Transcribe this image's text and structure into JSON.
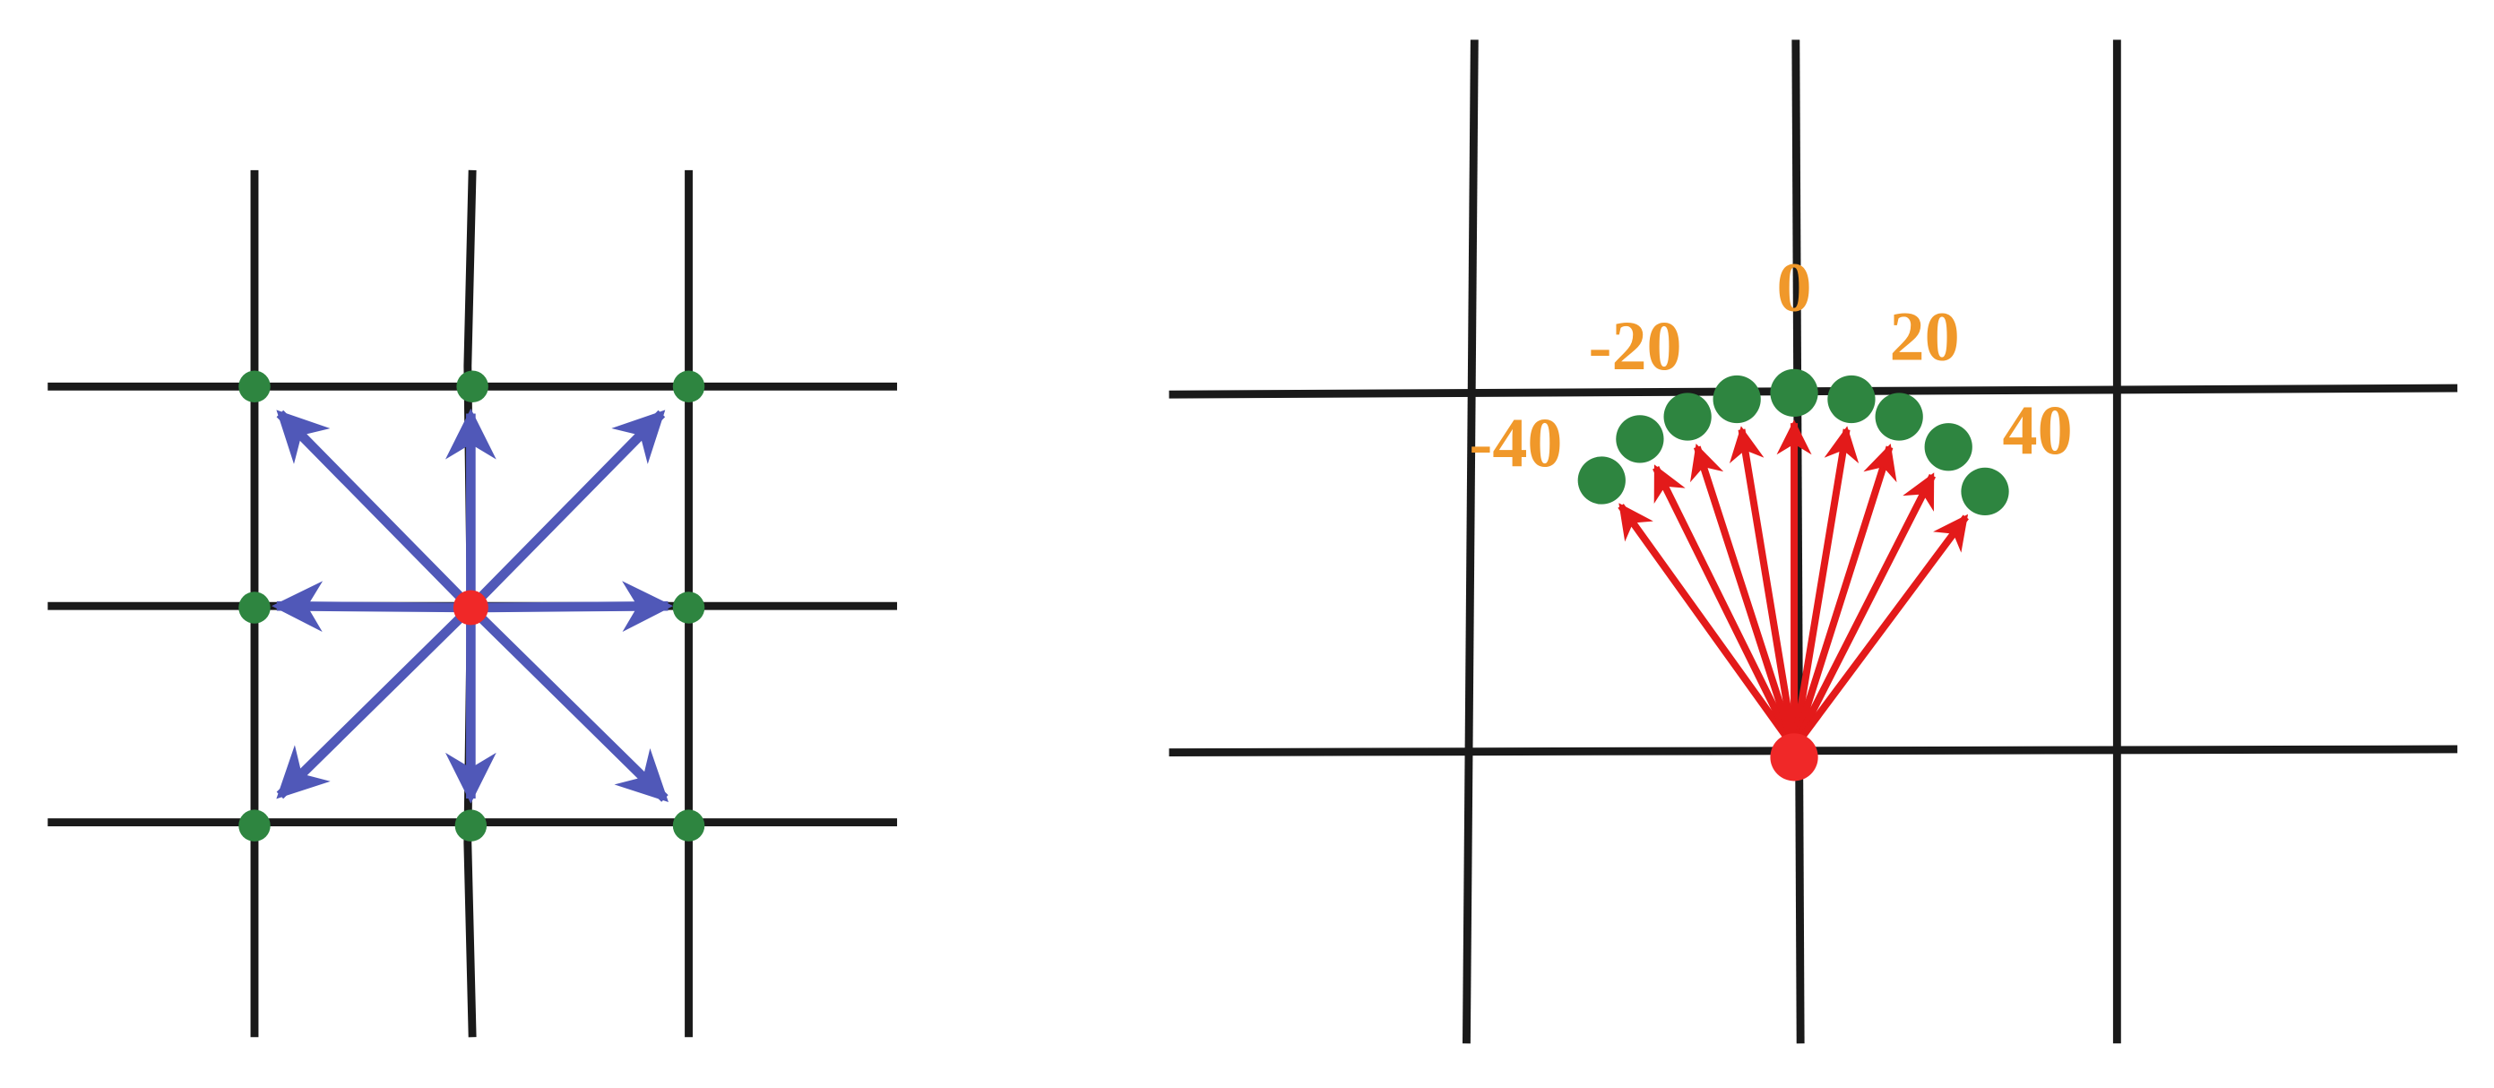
{
  "angle_labels": [
    "-40",
    "-20",
    "0",
    "20",
    "40"
  ]
}
